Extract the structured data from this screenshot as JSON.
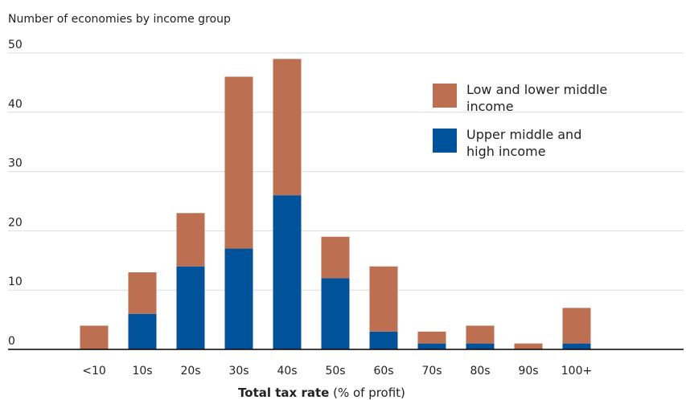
{
  "chart_data": {
    "type": "bar",
    "stacked": true,
    "title": "",
    "ylabel": "Number of economies by income group",
    "xlabel_bold": "Total tax rate",
    "xlabel_rest": " (% of profit)",
    "categories": [
      "<10",
      "10s",
      "20s",
      "30s",
      "40s",
      "50s",
      "60s",
      "70s",
      "80s",
      "90s",
      "100+"
    ],
    "series": [
      {
        "name": "Upper middle and high income",
        "color": "#00539b",
        "values": [
          0,
          6,
          14,
          17,
          26,
          12,
          3,
          1,
          1,
          0,
          1
        ]
      },
      {
        "name": "Low and lower middle income",
        "color": "#bd6f52",
        "values": [
          4,
          7,
          9,
          29,
          23,
          7,
          11,
          2,
          3,
          1,
          6
        ]
      }
    ],
    "yticks": [
      0,
      10,
      20,
      30,
      40,
      50
    ],
    "ylim": [
      0,
      50
    ],
    "grid": true,
    "legend": {
      "position": "top-right",
      "entries": [
        {
          "lines": [
            "Low and lower middle",
            "income"
          ],
          "color": "#bd6f52"
        },
        {
          "lines": [
            "Upper middle and",
            "high income"
          ],
          "color": "#00539b"
        }
      ]
    }
  }
}
